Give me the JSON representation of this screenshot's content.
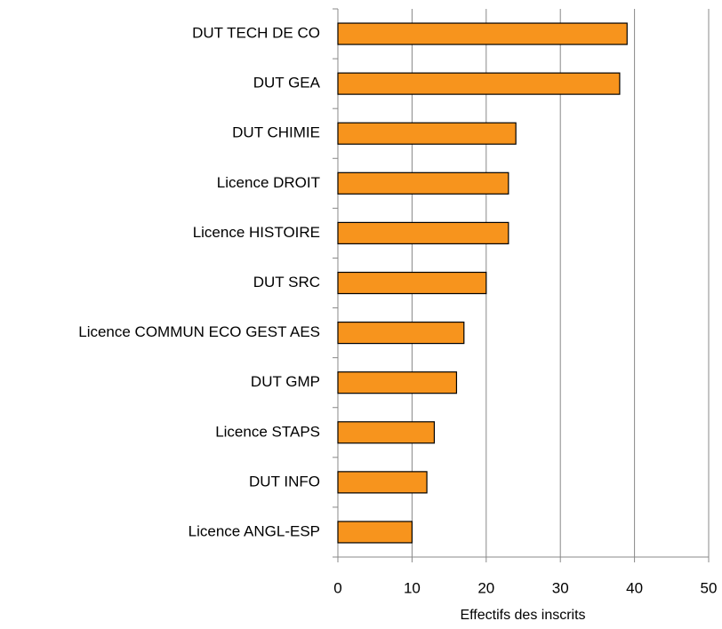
{
  "chart_data": {
    "type": "bar",
    "orientation": "horizontal",
    "categories": [
      "DUT TECH DE CO",
      "DUT GEA",
      "DUT CHIMIE",
      "Licence DROIT",
      "Licence HISTOIRE",
      "DUT SRC",
      "Licence COMMUN  ECO GEST AES",
      "DUT GMP",
      "Licence STAPS",
      "DUT INFO",
      "Licence ANGL-ESP"
    ],
    "values": [
      39,
      38,
      24,
      23,
      23,
      20,
      17,
      16,
      13,
      12,
      10
    ],
    "color": "#f7941d",
    "xlabel": "Effectifs des inscrits",
    "xlim": [
      0,
      50
    ],
    "xticks": [
      0,
      10,
      20,
      30,
      40,
      50
    ],
    "grid": true
  }
}
